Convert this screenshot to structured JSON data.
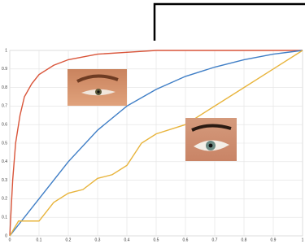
{
  "chart_data": {
    "type": "line",
    "xlim": [
      0,
      1
    ],
    "ylim": [
      0,
      1
    ],
    "xticks": [
      0,
      0.1,
      0.2,
      0.3,
      0.4,
      0.5,
      0.6,
      0.7,
      0.8,
      0.9,
      1
    ],
    "yticks": [
      0,
      0.1,
      0.2,
      0.3,
      0.4,
      0.5,
      0.6,
      0.7,
      0.8,
      0.9,
      1
    ],
    "grid": true,
    "series": [
      {
        "color": "#d9553a",
        "x": [
          0,
          0.01,
          0.02,
          0.035,
          0.05,
          0.075,
          0.1,
          0.15,
          0.2,
          0.3,
          0.4,
          0.5,
          0.7,
          1
        ],
        "values": [
          0,
          0.3,
          0.5,
          0.65,
          0.75,
          0.82,
          0.87,
          0.92,
          0.95,
          0.98,
          0.99,
          1,
          1,
          1
        ]
      },
      {
        "color": "#3f7ec6",
        "x": [
          0,
          0.1,
          0.2,
          0.3,
          0.4,
          0.5,
          0.6,
          0.7,
          0.8,
          0.9,
          1
        ],
        "values": [
          0,
          0.2,
          0.4,
          0.57,
          0.7,
          0.79,
          0.86,
          0.91,
          0.95,
          0.98,
          1
        ]
      },
      {
        "color": "#e8b43c",
        "x": [
          0,
          0.03,
          0.1,
          0.15,
          0.2,
          0.25,
          0.3,
          0.35,
          0.4,
          0.45,
          0.5,
          0.6,
          0.7,
          0.8,
          0.9,
          1
        ],
        "values": [
          0,
          0.08,
          0.08,
          0.18,
          0.23,
          0.25,
          0.31,
          0.33,
          0.38,
          0.5,
          0.55,
          0.6,
          0.7,
          0.8,
          0.9,
          1
        ]
      }
    ]
  }
}
